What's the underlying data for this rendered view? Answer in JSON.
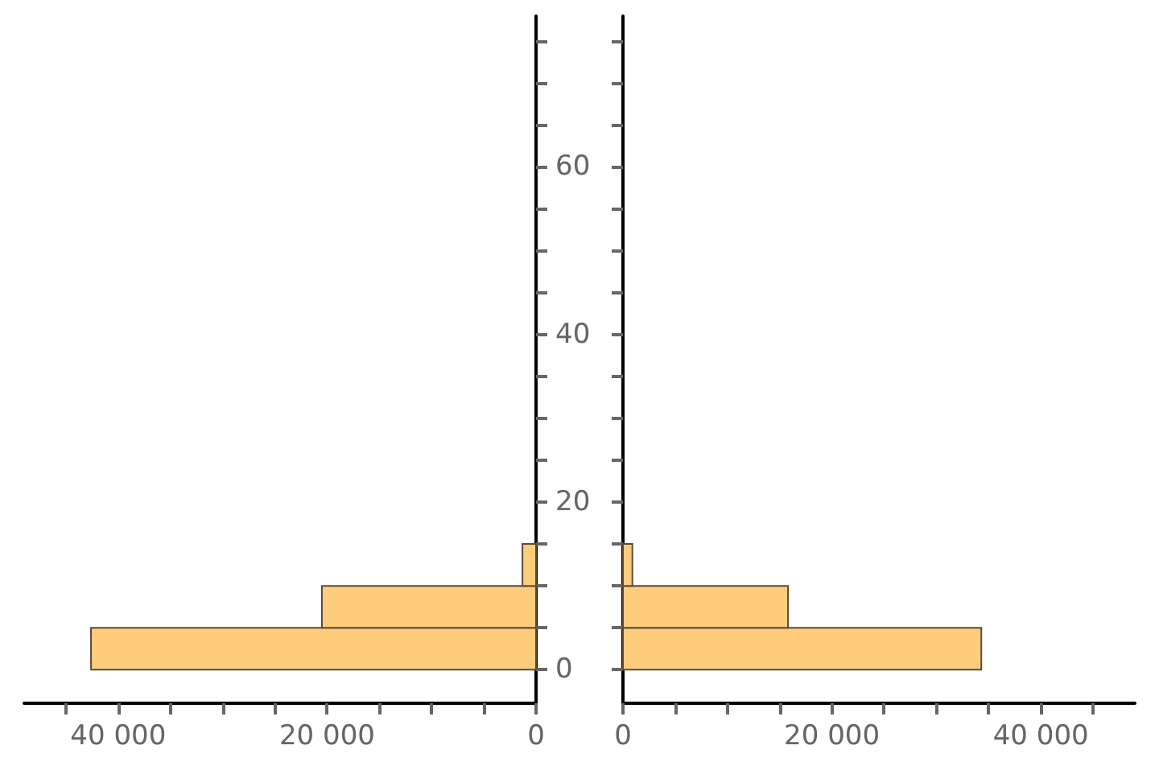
{
  "chart_data": [
    {
      "type": "histogram",
      "orientation": "horizontal",
      "bins": [
        0,
        5,
        10,
        15
      ],
      "values": [
        42600,
        20500,
        1300
      ],
      "color": "#fdcd7c",
      "xlim": [
        49000,
        0
      ],
      "xticks": [
        0,
        {
          "value": 5000,
          "label": null
        },
        {
          "value": 10000,
          "label": null
        },
        {
          "value": 15000,
          "label": null
        },
        {
          "value": 20000,
          "label": "20 000"
        },
        {
          "value": 25000,
          "label": null
        },
        {
          "value": 30000,
          "label": null
        },
        {
          "value": 35000,
          "label": null
        },
        {
          "value": 40000,
          "label": "40 000"
        },
        {
          "value": 45000,
          "label": null
        }
      ],
      "ylim": [
        -4,
        78
      ],
      "yticks": [
        0,
        {
          "value": 5,
          "label": null
        },
        {
          "value": 10,
          "label": null
        },
        {
          "value": 15,
          "label": null
        },
        20,
        {
          "value": 25,
          "label": null
        },
        {
          "value": 30,
          "label": null
        },
        {
          "value": 35,
          "label": null
        },
        40,
        {
          "value": 45,
          "label": null
        },
        {
          "value": 50,
          "label": null
        },
        {
          "value": 55,
          "label": null
        },
        60,
        {
          "value": 65,
          "label": null
        },
        {
          "value": 70,
          "label": null
        },
        {
          "value": 75,
          "label": null
        }
      ]
    },
    {
      "type": "histogram",
      "orientation": "horizontal",
      "bins": [
        0,
        5,
        10,
        15
      ],
      "values": [
        34300,
        15800,
        900
      ],
      "color": "#fdcd7c",
      "tick_labels": "x",
      "xlim": [
        0,
        49000
      ],
      "xticks": [
        0,
        {
          "value": 5000,
          "label": null
        },
        {
          "value": 10000,
          "label": null
        },
        {
          "value": 15000,
          "label": null
        },
        {
          "value": 20000,
          "label": "20 000"
        },
        {
          "value": 25000,
          "label": null
        },
        {
          "value": 30000,
          "label": null
        },
        {
          "value": 35000,
          "label": null
        },
        {
          "value": 40000,
          "label": "40 000"
        },
        {
          "value": 45000,
          "label": null
        }
      ],
      "ylim": [
        -4,
        78
      ],
      "yticks": [
        0,
        {
          "value": 5,
          "label": null
        },
        {
          "value": 10,
          "label": null
        },
        {
          "value": 15,
          "label": null
        },
        20,
        {
          "value": 25,
          "label": null
        },
        {
          "value": 30,
          "label": null
        },
        {
          "value": 35,
          "label": null
        },
        40,
        {
          "value": 45,
          "label": null
        },
        {
          "value": 50,
          "label": null
        },
        {
          "value": 55,
          "label": null
        },
        60,
        {
          "value": 65,
          "label": null
        },
        {
          "value": 70,
          "label": null
        },
        {
          "value": 75,
          "label": null
        }
      ]
    }
  ]
}
